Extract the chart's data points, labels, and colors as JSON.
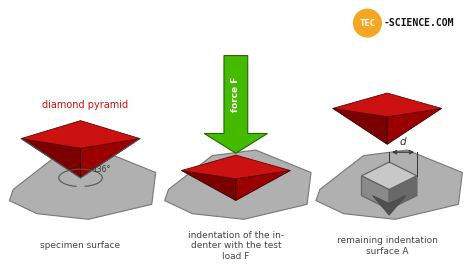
{
  "bg_color": "#ffffff",
  "logo_circle_color": "#f5a623",
  "diamond_color_top": "#cc1111",
  "diamond_color_left": "#7a0000",
  "diamond_color_right": "#9a0000",
  "surface_color_top": "#b0b0b0",
  "surface_color_side": "#888888",
  "surface_edge_color": "#777777",
  "arrow_color": "#44bb00",
  "arrow_edge_color": "#226600",
  "label_color": "#cc1111",
  "text_color": "#444444",
  "angle_label": "136°",
  "label_diamond": "diamond pyramid",
  "label1": "specimen surface",
  "label2": "indentation of the in-\ndenter with the test\nload F",
  "label3": "remaining indentation\nsurface A",
  "d_label": "d",
  "fig_width": 4.74,
  "fig_height": 2.66,
  "dpi": 100
}
